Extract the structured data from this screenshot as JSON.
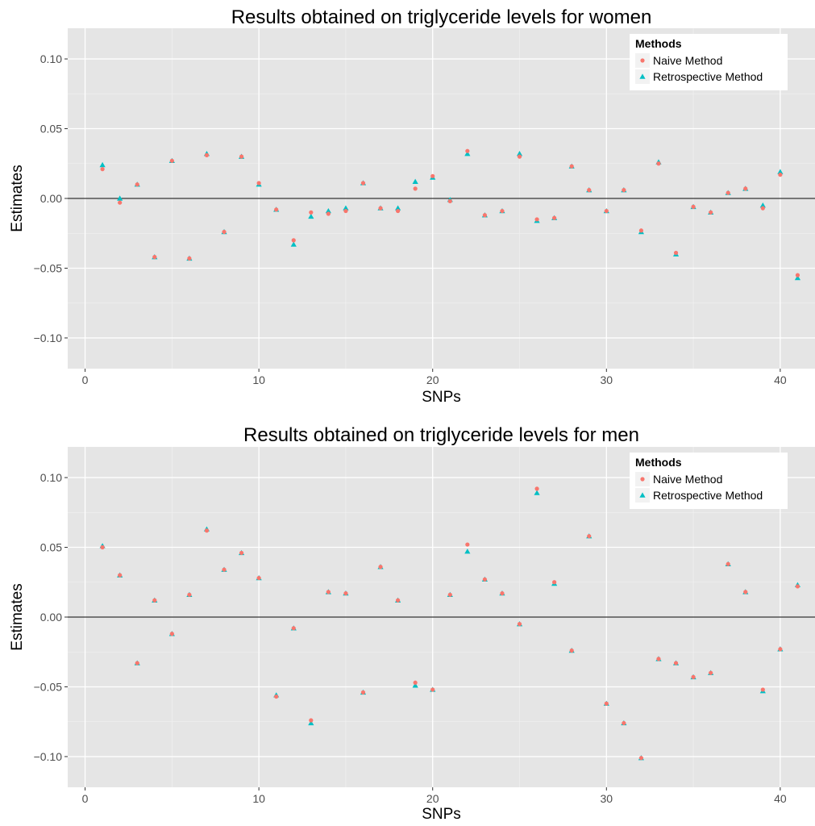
{
  "colors": {
    "panel_bg": "#e5e5e5",
    "grid_major": "#ffffff",
    "grid_minor": "#f2f2f2",
    "naive": "#f8766d",
    "retrospective": "#00bfc4",
    "zero_line": "#000000",
    "tick_label": "#4d4d4d"
  },
  "chart_data": [
    {
      "type": "scatter",
      "title": "Results obtained on triglyceride levels for women",
      "xlabel": "SNPs",
      "ylabel": "Estimates",
      "xlim": [
        -1,
        42
      ],
      "ylim": [
        -0.122,
        0.122
      ],
      "xticks": [
        0,
        10,
        20,
        30,
        40
      ],
      "yticks": [
        -0.1,
        -0.05,
        0.0,
        0.05,
        0.1
      ],
      "ytick_labels": [
        "−0.10",
        "−0.05",
        "0.00",
        "0.05",
        "0.10"
      ],
      "hline": 0,
      "grid": true,
      "legend": {
        "title": "Methods",
        "position": "top-right",
        "entries": [
          "Naive Method",
          "Retrospective Method"
        ]
      },
      "x": [
        1,
        2,
        3,
        4,
        5,
        6,
        7,
        8,
        9,
        10,
        11,
        12,
        13,
        14,
        15,
        16,
        17,
        18,
        19,
        20,
        21,
        22,
        23,
        24,
        25,
        26,
        27,
        28,
        29,
        30,
        31,
        32,
        33,
        34,
        35,
        36,
        37,
        38,
        39,
        40,
        41
      ],
      "series": [
        {
          "name": "Naive Method",
          "marker": "circle",
          "values": [
            0.021,
            -0.003,
            0.01,
            -0.042,
            0.027,
            -0.043,
            0.031,
            -0.024,
            0.03,
            0.011,
            -0.008,
            -0.03,
            -0.01,
            -0.011,
            -0.009,
            0.011,
            -0.007,
            -0.009,
            0.007,
            0.016,
            -0.002,
            0.034,
            -0.012,
            -0.009,
            0.03,
            -0.015,
            -0.014,
            0.023,
            0.006,
            -0.009,
            0.006,
            -0.023,
            0.025,
            -0.039,
            -0.006,
            -0.01,
            0.004,
            0.007,
            -0.007,
            0.017,
            -0.055
          ]
        },
        {
          "name": "Retrospective Method",
          "marker": "triangle",
          "values": [
            0.024,
            0.0,
            0.01,
            -0.042,
            0.027,
            -0.043,
            0.032,
            -0.024,
            0.03,
            0.01,
            -0.008,
            -0.033,
            -0.013,
            -0.009,
            -0.007,
            0.011,
            -0.007,
            -0.007,
            0.012,
            0.015,
            -0.001,
            0.032,
            -0.012,
            -0.009,
            0.032,
            -0.016,
            -0.014,
            0.023,
            0.006,
            -0.009,
            0.006,
            -0.024,
            0.026,
            -0.04,
            -0.006,
            -0.01,
            0.004,
            0.007,
            -0.005,
            0.019,
            -0.057
          ]
        }
      ]
    },
    {
      "type": "scatter",
      "title": "Results obtained on triglyceride levels for men",
      "xlabel": "SNPs",
      "ylabel": "Estimates",
      "xlim": [
        -1,
        42
      ],
      "ylim": [
        -0.122,
        0.122
      ],
      "xticks": [
        0,
        10,
        20,
        30,
        40
      ],
      "yticks": [
        -0.1,
        -0.05,
        0.0,
        0.05,
        0.1
      ],
      "ytick_labels": [
        "−0.10",
        "−0.05",
        "0.00",
        "0.05",
        "0.10"
      ],
      "hline": 0,
      "grid": true,
      "legend": {
        "title": "Methods",
        "position": "top-right",
        "entries": [
          "Naive Method",
          "Retrospective Method"
        ]
      },
      "x": [
        1,
        2,
        3,
        4,
        5,
        6,
        7,
        8,
        9,
        10,
        11,
        12,
        13,
        14,
        15,
        16,
        17,
        18,
        19,
        20,
        21,
        22,
        23,
        24,
        25,
        26,
        27,
        28,
        29,
        30,
        31,
        32,
        33,
        34,
        35,
        36,
        37,
        38,
        39,
        40,
        41
      ],
      "series": [
        {
          "name": "Naive Method",
          "marker": "circle",
          "values": [
            0.05,
            0.03,
            -0.033,
            0.012,
            -0.012,
            0.016,
            0.062,
            0.034,
            0.046,
            0.028,
            -0.057,
            -0.008,
            -0.074,
            0.018,
            0.017,
            -0.054,
            0.036,
            0.012,
            -0.047,
            -0.052,
            0.016,
            0.052,
            0.027,
            0.017,
            -0.005,
            0.092,
            0.025,
            -0.024,
            0.058,
            -0.062,
            -0.076,
            -0.101,
            -0.03,
            -0.033,
            -0.043,
            -0.04,
            0.038,
            0.018,
            -0.052,
            -0.023,
            0.022
          ]
        },
        {
          "name": "Retrospective Method",
          "marker": "triangle",
          "values": [
            0.051,
            0.03,
            -0.033,
            0.012,
            -0.012,
            0.016,
            0.063,
            0.034,
            0.046,
            0.028,
            -0.056,
            -0.008,
            -0.076,
            0.018,
            0.017,
            -0.054,
            0.036,
            0.012,
            -0.049,
            -0.052,
            0.016,
            0.047,
            0.027,
            0.017,
            -0.005,
            0.089,
            0.024,
            -0.024,
            0.058,
            -0.062,
            -0.076,
            -0.101,
            -0.03,
            -0.033,
            -0.043,
            -0.04,
            0.038,
            0.018,
            -0.053,
            -0.023,
            0.023
          ]
        }
      ]
    }
  ]
}
